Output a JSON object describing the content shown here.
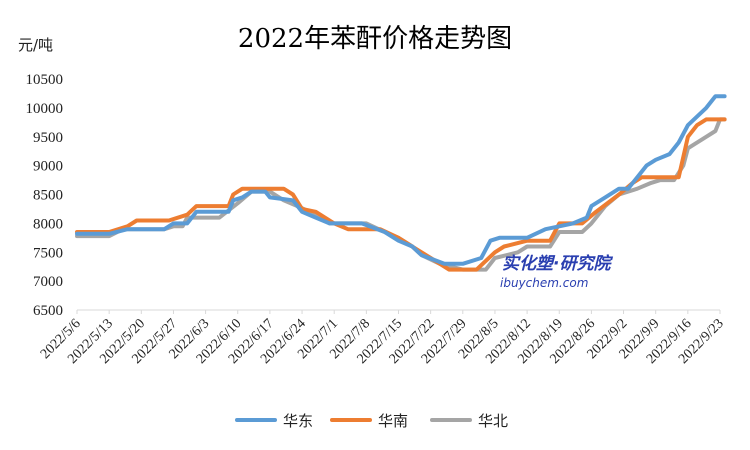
{
  "chart_data": {
    "type": "line",
    "title": "2022年苯酐价格走势图",
    "ylabel": "元/吨",
    "ylim": [
      6500,
      10500
    ],
    "yticks": [
      6500,
      7000,
      7500,
      8000,
      8500,
      9000,
      9500,
      10000,
      10500
    ],
    "grid": false,
    "legend_position": "bottom",
    "xtick_labels": [
      "2022/5/6",
      "2022/5/13",
      "2022/5/20",
      "2022/5/27",
      "2022/6/3",
      "2022/6/10",
      "2022/6/17",
      "2022/6/24",
      "2022/7/1",
      "2022/7/8",
      "2022/7/15",
      "2022/7/22",
      "2022/7/29",
      "2022/8/5",
      "2022/8/12",
      "2022/8/19",
      "2022/8/26",
      "2022/9/2",
      "2022/9/9",
      "2022/9/16",
      "2022/9/23"
    ],
    "series": [
      {
        "name": "华东",
        "color": "#5b9bd5",
        "points": [
          [
            "2022/5/6",
            7820
          ],
          [
            "2022/5/13",
            7820
          ],
          [
            "2022/5/17",
            7900
          ],
          [
            "2022/5/20",
            7900
          ],
          [
            "2022/5/25",
            7900
          ],
          [
            "2022/5/27",
            8000
          ],
          [
            "2022/5/30",
            8000
          ],
          [
            "2022/6/1",
            8200
          ],
          [
            "2022/6/8",
            8200
          ],
          [
            "2022/6/9",
            8400
          ],
          [
            "2022/6/11",
            8450
          ],
          [
            "2022/6/13",
            8550
          ],
          [
            "2022/6/16",
            8550
          ],
          [
            "2022/6/17",
            8450
          ],
          [
            "2022/6/20",
            8420
          ],
          [
            "2022/6/22",
            8400
          ],
          [
            "2022/6/24",
            8200
          ],
          [
            "2022/6/27",
            8100
          ],
          [
            "2022/6/30",
            8000
          ],
          [
            "2022/7/7",
            8000
          ],
          [
            "2022/7/12",
            7850
          ],
          [
            "2022/7/15",
            7700
          ],
          [
            "2022/7/18",
            7600
          ],
          [
            "2022/7/20",
            7450
          ],
          [
            "2022/7/25",
            7300
          ],
          [
            "2022/7/29",
            7300
          ],
          [
            "2022/8/2",
            7400
          ],
          [
            "2022/8/4",
            7700
          ],
          [
            "2022/8/6",
            7750
          ],
          [
            "2022/8/12",
            7750
          ],
          [
            "2022/8/16",
            7900
          ],
          [
            "2022/8/19",
            7950
          ],
          [
            "2022/8/22",
            8000
          ],
          [
            "2022/8/25",
            8100
          ],
          [
            "2022/8/26",
            8300
          ],
          [
            "2022/8/29",
            8450
          ],
          [
            "2022/9/1",
            8600
          ],
          [
            "2022/9/3",
            8600
          ],
          [
            "2022/9/5",
            8800
          ],
          [
            "2022/9/7",
            9000
          ],
          [
            "2022/9/9",
            9100
          ],
          [
            "2022/9/12",
            9200
          ],
          [
            "2022/9/14",
            9400
          ],
          [
            "2022/9/16",
            9700
          ],
          [
            "2022/9/20",
            10000
          ],
          [
            "2022/9/22",
            10200
          ],
          [
            "2022/9/24",
            10200
          ]
        ]
      },
      {
        "name": "华南",
        "color": "#ed7d31",
        "points": [
          [
            "2022/5/6",
            7850
          ],
          [
            "2022/5/13",
            7850
          ],
          [
            "2022/5/17",
            7950
          ],
          [
            "2022/5/19",
            8050
          ],
          [
            "2022/5/26",
            8050
          ],
          [
            "2022/5/30",
            8150
          ],
          [
            "2022/6/1",
            8300
          ],
          [
            "2022/6/8",
            8300
          ],
          [
            "2022/6/9",
            8500
          ],
          [
            "2022/6/11",
            8600
          ],
          [
            "2022/6/20",
            8600
          ],
          [
            "2022/6/22",
            8500
          ],
          [
            "2022/6/24",
            8250
          ],
          [
            "2022/6/27",
            8200
          ],
          [
            "2022/7/1",
            8000
          ],
          [
            "2022/7/4",
            7900
          ],
          [
            "2022/7/11",
            7900
          ],
          [
            "2022/7/15",
            7750
          ],
          [
            "2022/7/19",
            7550
          ],
          [
            "2022/7/22",
            7400
          ],
          [
            "2022/7/26",
            7200
          ],
          [
            "2022/8/1",
            7200
          ],
          [
            "2022/8/5",
            7500
          ],
          [
            "2022/8/7",
            7600
          ],
          [
            "2022/8/12",
            7700
          ],
          [
            "2022/8/17",
            7700
          ],
          [
            "2022/8/19",
            8000
          ],
          [
            "2022/8/24",
            8000
          ],
          [
            "2022/8/27",
            8200
          ],
          [
            "2022/9/1",
            8500
          ],
          [
            "2022/9/4",
            8700
          ],
          [
            "2022/9/6",
            8800
          ],
          [
            "2022/9/14",
            8800
          ],
          [
            "2022/9/16",
            9500
          ],
          [
            "2022/9/18",
            9700
          ],
          [
            "2022/9/20",
            9800
          ],
          [
            "2022/9/24",
            9800
          ]
        ]
      },
      {
        "name": "华北",
        "color": "#a5a5a5",
        "points": [
          [
            "2022/5/6",
            7780
          ],
          [
            "2022/5/13",
            7780
          ],
          [
            "2022/5/16",
            7900
          ],
          [
            "2022/5/25",
            7900
          ],
          [
            "2022/5/27",
            7950
          ],
          [
            "2022/5/29",
            7950
          ],
          [
            "2022/5/30",
            8100
          ],
          [
            "2022/6/6",
            8100
          ],
          [
            "2022/6/10",
            8350
          ],
          [
            "2022/6/13",
            8550
          ],
          [
            "2022/6/17",
            8550
          ],
          [
            "2022/6/20",
            8400
          ],
          [
            "2022/6/23",
            8300
          ],
          [
            "2022/6/27",
            8150
          ],
          [
            "2022/6/30",
            8000
          ],
          [
            "2022/7/8",
            8000
          ],
          [
            "2022/7/12",
            7850
          ],
          [
            "2022/7/15",
            7750
          ],
          [
            "2022/7/18",
            7600
          ],
          [
            "2022/7/20",
            7450
          ],
          [
            "2022/7/24",
            7300
          ],
          [
            "2022/7/29",
            7200
          ],
          [
            "2022/8/3",
            7200
          ],
          [
            "2022/8/5",
            7400
          ],
          [
            "2022/8/10",
            7500
          ],
          [
            "2022/8/12",
            7600
          ],
          [
            "2022/8/17",
            7600
          ],
          [
            "2022/8/19",
            7850
          ],
          [
            "2022/8/24",
            7850
          ],
          [
            "2022/8/26",
            8000
          ],
          [
            "2022/8/29",
            8300
          ],
          [
            "2022/9/1",
            8500
          ],
          [
            "2022/9/5",
            8600
          ],
          [
            "2022/9/8",
            8700
          ],
          [
            "2022/9/10",
            8750
          ],
          [
            "2022/9/13",
            8750
          ],
          [
            "2022/9/15",
            9000
          ],
          [
            "2022/9/16",
            9300
          ],
          [
            "2022/9/20",
            9500
          ],
          [
            "2022/9/22",
            9600
          ],
          [
            "2022/9/23",
            9800
          ],
          [
            "2022/9/24",
            9800
          ]
        ]
      }
    ]
  },
  "watermark": {
    "text_cn": "实化塑·研究院",
    "text_en": "ibuychem.com"
  }
}
